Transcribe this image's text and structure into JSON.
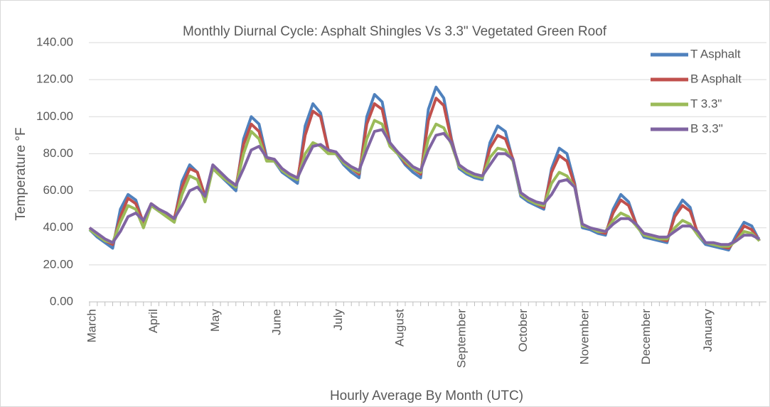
{
  "chart_data": {
    "type": "line",
    "title": "Monthly Diurnal Cycle: Asphalt Shingles Vs 3.3\" Vegetated Green Roof",
    "x_label": "Hourly Average By Month (UTC)",
    "y_label": "Temperature °F",
    "categories": [
      "March",
      null,
      null,
      null,
      null,
      null,
      null,
      null,
      "April",
      null,
      null,
      null,
      null,
      null,
      null,
      null,
      "May",
      null,
      null,
      null,
      null,
      null,
      null,
      null,
      "June",
      null,
      null,
      null,
      null,
      null,
      null,
      null,
      "July",
      null,
      null,
      null,
      null,
      null,
      null,
      null,
      "August",
      null,
      null,
      null,
      null,
      null,
      null,
      null,
      "September",
      null,
      null,
      null,
      null,
      null,
      null,
      null,
      "October",
      null,
      null,
      null,
      null,
      null,
      null,
      null,
      "November",
      null,
      null,
      null,
      null,
      null,
      null,
      null,
      "December",
      null,
      null,
      null,
      null,
      null,
      null,
      null,
      "January",
      null,
      null,
      null,
      null,
      null,
      null,
      null
    ],
    "ylim": [
      0,
      140
    ],
    "yticks": [
      {
        "value": 0,
        "label": "0.00"
      },
      {
        "value": 20,
        "label": "20.00"
      },
      {
        "value": 40,
        "label": "40.00"
      },
      {
        "value": 60,
        "label": "60.00"
      },
      {
        "value": 80,
        "label": "80.00"
      },
      {
        "value": 100,
        "label": "100.00"
      },
      {
        "value": 120,
        "label": "120.00"
      },
      {
        "value": 140,
        "label": "140.00"
      }
    ],
    "grid": true,
    "legend": "top-right",
    "series": [
      {
        "name": "T Asphalt",
        "color": "#4f81bd",
        "values": [
          39,
          35,
          32,
          29,
          50,
          58,
          55,
          42,
          52,
          49,
          47,
          44,
          65,
          74,
          70,
          56,
          72,
          68,
          64,
          60,
          88,
          100,
          96,
          78,
          76,
          70,
          67,
          64,
          95,
          107,
          102,
          82,
          80,
          74,
          70,
          67,
          100,
          112,
          108,
          86,
          80,
          74,
          70,
          67,
          104,
          116,
          110,
          88,
          72,
          69,
          67,
          66,
          86,
          95,
          92,
          76,
          57,
          54,
          52,
          50,
          72,
          83,
          80,
          64,
          40,
          39,
          37,
          36,
          50,
          58,
          54,
          42,
          35,
          34,
          33,
          32,
          48,
          55,
          51,
          36,
          31,
          30,
          29,
          28,
          36,
          43,
          41,
          33
        ]
      },
      {
        "name": "B Asphalt",
        "color": "#c0504d",
        "values": [
          40,
          36,
          33,
          31,
          46,
          56,
          53,
          43,
          53,
          50,
          47,
          45,
          62,
          72,
          70,
          57,
          73,
          69,
          65,
          62,
          85,
          96,
          92,
          77,
          77,
          71,
          68,
          66,
          90,
          103,
          100,
          82,
          80,
          75,
          72,
          69,
          96,
          107,
          104,
          85,
          81,
          75,
          72,
          69,
          98,
          110,
          106,
          87,
          73,
          70,
          68,
          67,
          83,
          90,
          88,
          77,
          58,
          55,
          53,
          51,
          70,
          79,
          76,
          63,
          41,
          40,
          38,
          37,
          48,
          55,
          52,
          42,
          36,
          35,
          34,
          33,
          46,
          52,
          49,
          37,
          32,
          31,
          30,
          29,
          34,
          41,
          39,
          33
        ]
      },
      {
        "name": "T 3.3\"",
        "color": "#9bbb59",
        "values": [
          39,
          36,
          33,
          32,
          43,
          52,
          50,
          40,
          52,
          49,
          46,
          43,
          58,
          68,
          66,
          54,
          72,
          68,
          65,
          62,
          80,
          92,
          88,
          76,
          76,
          71,
          68,
          66,
          80,
          86,
          84,
          80,
          80,
          75,
          72,
          70,
          88,
          98,
          96,
          84,
          80,
          76,
          72,
          70,
          88,
          96,
          94,
          85,
          73,
          70,
          68,
          67,
          78,
          83,
          82,
          76,
          58,
          55,
          53,
          52,
          64,
          70,
          68,
          62,
          41,
          40,
          38,
          38,
          44,
          48,
          46,
          41,
          36,
          35,
          34,
          34,
          40,
          44,
          42,
          36,
          32,
          31,
          30,
          30,
          33,
          38,
          37,
          33
        ]
      },
      {
        "name": "B 3.3\"",
        "color": "#8064a2",
        "values": [
          40,
          37,
          34,
          32,
          38,
          46,
          48,
          44,
          53,
          50,
          48,
          45,
          52,
          60,
          62,
          57,
          74,
          70,
          66,
          63,
          72,
          82,
          84,
          78,
          77,
          72,
          69,
          67,
          76,
          84,
          85,
          82,
          81,
          76,
          73,
          71,
          82,
          92,
          93,
          86,
          81,
          77,
          73,
          71,
          82,
          90,
          91,
          86,
          74,
          71,
          69,
          68,
          74,
          80,
          80,
          77,
          59,
          56,
          54,
          53,
          58,
          65,
          66,
          62,
          42,
          40,
          39,
          38,
          42,
          45,
          45,
          42,
          37,
          36,
          35,
          35,
          38,
          41,
          41,
          38,
          32,
          32,
          31,
          31,
          33,
          36,
          36,
          34
        ]
      }
    ]
  }
}
